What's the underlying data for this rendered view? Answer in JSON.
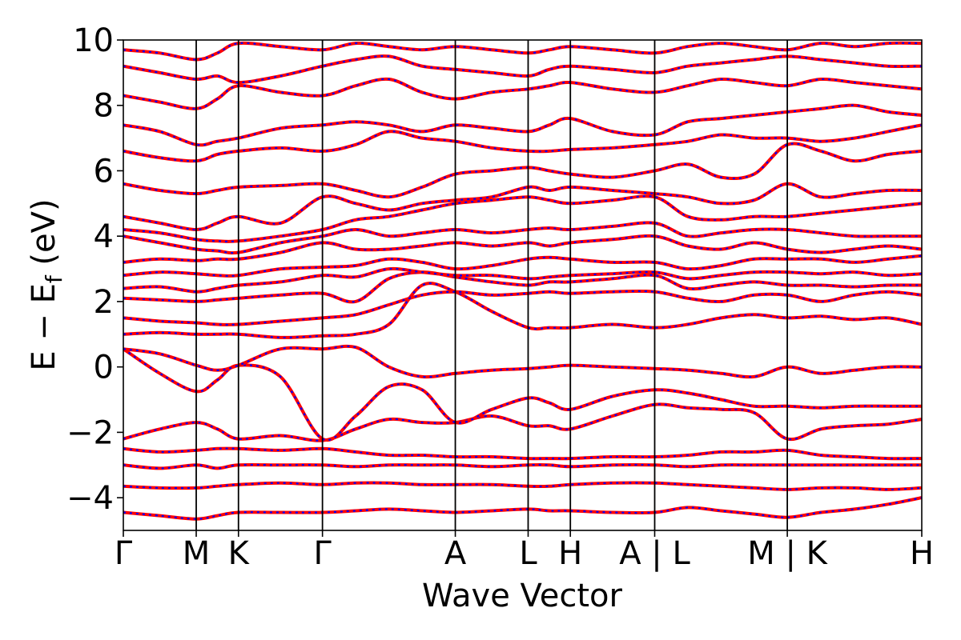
{
  "chart_data": {
    "type": "line",
    "title": "",
    "xlabel": "Wave Vector",
    "ylabel": {
      "main": "E − E",
      "sub": "f",
      "tail": " (eV)"
    },
    "ylim": [
      -5,
      10
    ],
    "yticks": [
      -4,
      -2,
      0,
      2,
      4,
      6,
      8,
      10
    ],
    "ytick_labels": [
      "−4",
      "−2",
      "0",
      "2",
      "4",
      "6",
      "8",
      "10"
    ],
    "kpath": [
      {
        "label": "Γ",
        "x": 0.0
      },
      {
        "label": "M",
        "x": 0.0913
      },
      {
        "label": "K",
        "x": 0.1442
      },
      {
        "label": "Γ",
        "x": 0.2494
      },
      {
        "label": "A",
        "x": 0.4158
      },
      {
        "label": "L",
        "x": 0.507
      },
      {
        "label": "H",
        "x": 0.5599
      },
      {
        "label": "A | L",
        "x": 0.6655
      },
      {
        "label": "M | K",
        "x": 0.8316
      },
      {
        "label": "H",
        "x": 1.0
      }
    ],
    "series_colors": {
      "primary": "#ff0000",
      "overlay": "#0000ff"
    },
    "grid": false,
    "bands": {
      "x": [
        0.0,
        0.0457,
        0.0913,
        0.1178,
        0.1442,
        0.1968,
        0.2494,
        0.291,
        0.3326,
        0.3742,
        0.4158,
        0.4614,
        0.507,
        0.5335,
        0.5599,
        0.6127,
        0.6655,
        0.707,
        0.7486,
        0.7901,
        0.8316,
        0.8738,
        0.9158,
        0.9579,
        1.0
      ],
      "energies": [
        [
          -4.45,
          -4.55,
          -4.65,
          -4.55,
          -4.45,
          -4.45,
          -4.45,
          -4.4,
          -4.35,
          -4.4,
          -4.45,
          -4.4,
          -4.35,
          -4.4,
          -4.4,
          -4.45,
          -4.45,
          -4.3,
          -4.4,
          -4.5,
          -4.6,
          -4.45,
          -4.35,
          -4.2,
          -4.0
        ],
        [
          -3.65,
          -3.7,
          -3.7,
          -3.65,
          -3.6,
          -3.55,
          -3.6,
          -3.55,
          -3.55,
          -3.6,
          -3.6,
          -3.6,
          -3.65,
          -3.65,
          -3.6,
          -3.55,
          -3.55,
          -3.6,
          -3.65,
          -3.7,
          -3.75,
          -3.7,
          -3.7,
          -3.75,
          -3.7
        ],
        [
          -3.0,
          -3.1,
          -3.0,
          -3.1,
          -3.0,
          -3.0,
          -3.0,
          -3.05,
          -3.0,
          -3.0,
          -3.0,
          -3.05,
          -3.0,
          -3.0,
          -3.05,
          -3.0,
          -3.0,
          -3.05,
          -3.0,
          -3.0,
          -3.0,
          -3.0,
          -3.0,
          -3.0,
          -3.0
        ],
        [
          -2.5,
          -2.6,
          -2.55,
          -2.5,
          -2.5,
          -2.55,
          -2.5,
          -2.6,
          -2.7,
          -2.7,
          -2.75,
          -2.75,
          -2.8,
          -2.8,
          -2.8,
          -2.75,
          -2.75,
          -2.7,
          -2.6,
          -2.6,
          -2.55,
          -2.7,
          -2.75,
          -2.8,
          -2.8
        ],
        [
          -2.2,
          -1.9,
          -1.7,
          -1.9,
          -2.2,
          -2.1,
          -2.25,
          -1.9,
          -1.6,
          -1.7,
          -1.7,
          -1.5,
          -1.8,
          -1.8,
          -1.9,
          -1.5,
          -1.15,
          -1.25,
          -1.3,
          -1.4,
          -2.2,
          -1.9,
          -1.8,
          -1.75,
          -1.6
        ],
        [
          0.55,
          -0.2,
          -0.75,
          -0.4,
          0.05,
          -0.3,
          -2.2,
          -1.5,
          -0.6,
          -0.7,
          -1.7,
          -1.3,
          -0.95,
          -1.1,
          -1.3,
          -0.9,
          -0.7,
          -0.8,
          -1.0,
          -1.2,
          -1.2,
          -1.25,
          -1.2,
          -1.2,
          -1.2
        ],
        [
          0.55,
          0.4,
          0.05,
          -0.1,
          0.05,
          0.55,
          0.55,
          0.6,
          0.0,
          -0.3,
          -0.2,
          -0.1,
          -0.05,
          0.0,
          0.05,
          0.0,
          -0.05,
          -0.1,
          -0.2,
          -0.3,
          0.0,
          -0.2,
          -0.1,
          0.0,
          0.0
        ],
        [
          1.0,
          1.05,
          1.0,
          1.0,
          1.0,
          0.9,
          0.95,
          1.0,
          1.3,
          2.5,
          2.3,
          1.7,
          1.2,
          1.2,
          1.2,
          1.3,
          1.2,
          1.3,
          1.5,
          1.6,
          1.5,
          1.55,
          1.45,
          1.5,
          1.3
        ],
        [
          1.5,
          1.4,
          1.35,
          1.3,
          1.3,
          1.4,
          1.5,
          1.6,
          1.9,
          2.2,
          2.3,
          2.2,
          2.25,
          2.3,
          2.25,
          2.3,
          2.3,
          2.1,
          2.0,
          2.2,
          2.2,
          2.0,
          2.2,
          2.3,
          2.2
        ],
        [
          2.1,
          2.05,
          2.0,
          2.05,
          2.1,
          2.2,
          2.25,
          2.0,
          2.7,
          2.9,
          2.75,
          2.6,
          2.5,
          2.6,
          2.6,
          2.7,
          2.8,
          2.4,
          2.5,
          2.6,
          2.5,
          2.5,
          2.45,
          2.5,
          2.5
        ],
        [
          2.4,
          2.45,
          2.3,
          2.4,
          2.5,
          2.6,
          2.8,
          2.75,
          3.0,
          2.9,
          2.8,
          2.8,
          2.7,
          2.75,
          2.8,
          2.85,
          2.9,
          2.7,
          2.8,
          2.9,
          2.9,
          2.85,
          2.9,
          2.8,
          2.85
        ],
        [
          2.8,
          2.9,
          2.85,
          2.8,
          2.8,
          3.0,
          3.05,
          3.1,
          3.3,
          3.2,
          3.0,
          3.1,
          3.3,
          3.35,
          3.3,
          3.2,
          3.2,
          3.0,
          3.1,
          3.3,
          3.3,
          3.3,
          3.2,
          3.3,
          3.4
        ],
        [
          3.2,
          3.3,
          3.25,
          3.3,
          3.3,
          3.5,
          3.8,
          3.6,
          3.6,
          3.7,
          3.8,
          3.7,
          3.8,
          3.7,
          3.8,
          3.9,
          4.0,
          3.7,
          3.6,
          3.8,
          3.6,
          3.5,
          3.6,
          3.7,
          3.6
        ],
        [
          4.0,
          3.8,
          3.6,
          3.55,
          3.5,
          3.8,
          4.0,
          4.2,
          4.0,
          4.1,
          4.2,
          4.1,
          4.2,
          4.25,
          4.2,
          4.3,
          4.4,
          4.0,
          4.1,
          4.2,
          4.2,
          4.1,
          4.0,
          4.0,
          4.0
        ],
        [
          4.2,
          4.1,
          3.9,
          3.85,
          3.85,
          4.0,
          4.2,
          4.5,
          4.6,
          4.8,
          5.0,
          5.1,
          5.2,
          5.1,
          5.0,
          5.1,
          5.2,
          4.6,
          4.5,
          4.6,
          4.6,
          4.7,
          4.8,
          4.9,
          5.0
        ],
        [
          4.6,
          4.4,
          4.2,
          4.4,
          4.6,
          4.4,
          5.2,
          5.0,
          4.8,
          5.0,
          5.1,
          5.2,
          5.5,
          5.4,
          5.5,
          5.4,
          5.3,
          5.2,
          5.0,
          5.1,
          5.6,
          5.2,
          5.3,
          5.4,
          5.4
        ],
        [
          5.6,
          5.4,
          5.3,
          5.4,
          5.5,
          5.55,
          5.6,
          5.4,
          5.2,
          5.5,
          5.9,
          6.0,
          6.1,
          6.0,
          5.9,
          5.8,
          6.0,
          6.2,
          5.8,
          5.9,
          6.8,
          6.6,
          6.3,
          6.5,
          6.6
        ],
        [
          6.6,
          6.4,
          6.3,
          6.5,
          6.6,
          6.7,
          6.6,
          6.8,
          7.2,
          7.0,
          6.9,
          6.7,
          6.6,
          6.6,
          6.65,
          6.7,
          6.8,
          6.9,
          7.1,
          7.0,
          7.0,
          6.9,
          7.0,
          7.2,
          7.4
        ],
        [
          7.4,
          7.2,
          6.8,
          6.9,
          7.0,
          7.3,
          7.4,
          7.5,
          7.4,
          7.2,
          7.4,
          7.3,
          7.2,
          7.4,
          7.6,
          7.2,
          7.1,
          7.5,
          7.6,
          7.7,
          7.8,
          7.9,
          8.0,
          7.8,
          7.7
        ],
        [
          8.3,
          8.1,
          7.9,
          8.2,
          8.6,
          8.4,
          8.3,
          8.6,
          8.8,
          8.4,
          8.2,
          8.4,
          8.5,
          8.6,
          8.7,
          8.5,
          8.4,
          8.6,
          8.8,
          8.7,
          8.6,
          8.8,
          8.7,
          8.6,
          8.5
        ],
        [
          9.2,
          9.0,
          8.8,
          8.9,
          8.7,
          8.9,
          9.2,
          9.4,
          9.5,
          9.2,
          9.1,
          9.0,
          8.9,
          9.1,
          9.2,
          9.1,
          9.0,
          9.2,
          9.3,
          9.4,
          9.5,
          9.4,
          9.3,
          9.2,
          9.2
        ],
        [
          9.7,
          9.6,
          9.4,
          9.6,
          9.9,
          9.8,
          9.7,
          9.9,
          9.8,
          9.7,
          9.8,
          9.7,
          9.6,
          9.7,
          9.8,
          9.7,
          9.6,
          9.8,
          9.9,
          9.8,
          9.7,
          9.9,
          9.8,
          9.9,
          9.9
        ]
      ]
    }
  }
}
